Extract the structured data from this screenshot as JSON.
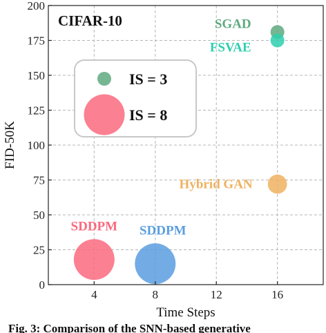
{
  "chart_data": {
    "type": "scatter",
    "title": "CIFAR-10",
    "xlabel": "Time Steps",
    "ylabel": "FID-50K",
    "xlim": [
      1,
      19
    ],
    "ylim": [
      0,
      200
    ],
    "xticks": [
      4,
      8,
      12,
      16
    ],
    "yticks": [
      0,
      25,
      50,
      75,
      100,
      125,
      150,
      175,
      200
    ],
    "grid": true,
    "points": [
      {
        "label": "SGAD",
        "x": 16,
        "y": 181,
        "is": 3,
        "color": "#5fa97f"
      },
      {
        "label": "FSVAE",
        "x": 16,
        "y": 175,
        "is": 3,
        "color": "#2fcfae"
      },
      {
        "label": "Hybrid GAN",
        "x": 16,
        "y": 72,
        "is": 4,
        "color": "#efb160"
      },
      {
        "label": "SDDPM",
        "x": 4,
        "y": 18,
        "is": 8,
        "color": "#fa6a7f"
      },
      {
        "label": "SDDPM",
        "x": 8,
        "y": 15,
        "is": 8,
        "color": "#5a9ee0"
      }
    ],
    "legend": {
      "placement": "upper-left",
      "entries": [
        {
          "label": "IS = 3",
          "is": 3,
          "color": "#5fa97f"
        },
        {
          "label": "IS = 8",
          "is": 8,
          "color": "#fa6a7f"
        }
      ]
    }
  },
  "caption": "Fig. 3: Comparison of the SNN-based generative"
}
